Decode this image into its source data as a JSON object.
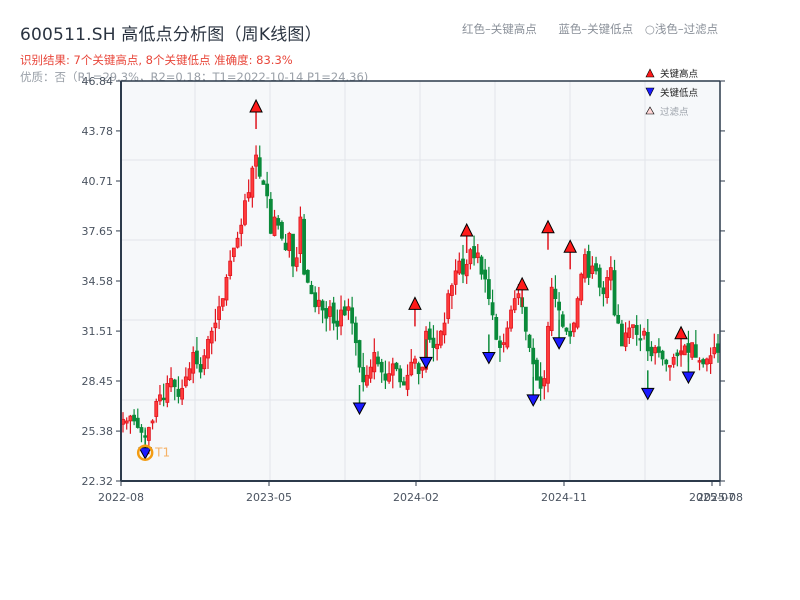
{
  "header": {
    "title": "600511.SH 高低点分析图（周K线图）",
    "result_text": "识别结果: 7个关键高点, 8个关键低点  准确度: 83.3%",
    "quality_text": "优质：否（R1=29.3%，R2=0.18；T1=2022-10-14 P1=24.36)",
    "legend_labels": [
      "红色–关键高点",
      "蓝色–关键低点",
      "○浅色–过滤点"
    ]
  },
  "colors": {
    "up": "#e0141e",
    "down": "#0a8a3a",
    "key_high": "#ff1a1a",
    "key_low": "#1a1aff",
    "filtered": "#ffd6d6",
    "t1_ring": "#f39c12",
    "axis": "#2c3a4b",
    "grid": "#e2e5ea",
    "plot_bg": "#f6f8fa"
  },
  "chart_data": {
    "type": "candlestick",
    "title": "600511.SH 高低点分析图（周K线图）",
    "xlabel": "",
    "ylabel": "",
    "ylim": [
      22.32,
      46.84
    ],
    "yticks": [
      22.32,
      25.38,
      28.45,
      31.51,
      34.58,
      37.65,
      40.71,
      43.78,
      46.84
    ],
    "xticks": [
      {
        "label": "2022-08",
        "pos": 0
      },
      {
        "label": "2023-05",
        "pos": 39
      },
      {
        "label": "2024-02",
        "pos": 78
      },
      {
        "label": "2024-11",
        "pos": 117
      },
      {
        "label": "2025-07",
        "pos": 156
      },
      {
        "label": "2025-08",
        "pos": 158
      }
    ],
    "grid": true,
    "legend": {
      "position": "upper right",
      "entries": [
        "关键高点",
        "关键低点",
        "过滤点"
      ]
    },
    "annotations": [
      {
        "label": "T1",
        "date": "2022-10-14",
        "price": 24.36
      }
    ],
    "close_series": [
      26.1,
      26.0,
      26.3,
      26.0,
      25.6,
      25.3,
      25.0,
      25.6,
      26.0,
      27.2,
      27.6,
      27.3,
      28.3,
      28.6,
      28.1,
      27.5,
      28.0,
      28.7,
      29.2,
      30.2,
      29.5,
      29.0,
      30.0,
      31.0,
      31.5,
      32.0,
      33.0,
      33.5,
      34.8,
      35.8,
      36.6,
      37.2,
      38.0,
      39.5,
      40.0,
      41.5,
      42.3,
      41.0,
      40.5,
      39.8,
      37.5,
      38.5,
      38.0,
      37.2,
      36.5,
      37.5,
      35.5,
      36.0,
      38.5,
      35.0,
      34.5,
      33.8,
      33.0,
      33.4,
      32.8,
      32.3,
      33.0,
      32.0,
      31.8,
      32.8,
      32.5,
      33.0,
      32.0,
      30.8,
      29.3,
      28.4,
      28.8,
      29.3,
      30.2,
      29.5,
      29.0,
      28.5,
      28.9,
      29.5,
      29.2,
      28.4,
      28.2,
      28.8,
      29.6,
      29.8,
      28.9,
      29.3,
      31.5,
      31.0,
      30.5,
      30.7,
      31.5,
      32.0,
      33.8,
      34.3,
      35.2,
      35.8,
      35.0,
      35.6,
      36.5,
      36.0,
      36.3,
      35.0,
      34.7,
      33.5,
      32.5,
      31.0,
      30.5,
      30.8,
      31.7,
      32.8,
      33.5,
      33.8,
      33.0,
      31.5,
      30.5,
      29.5,
      28.5,
      28.0,
      28.6,
      31.8,
      34.2,
      33.5,
      32.8,
      31.8,
      31.5,
      31.2,
      32.0,
      33.5,
      35.0,
      36.2,
      34.8,
      35.5,
      35.2,
      34.2,
      33.8,
      34.8,
      35.4,
      32.5,
      32.0,
      30.6,
      31.4,
      31.7,
      31.9,
      31.3,
      31.0,
      31.5,
      30.3,
      30.0,
      30.5,
      30.2,
      29.8,
      29.5,
      29.4,
      29.9,
      30.0,
      30.3,
      30.6,
      30.2,
      30.8,
      29.9,
      29.7,
      29.5,
      29.8,
      30.0,
      30.5,
      30.2
    ],
    "key_highs": [
      {
        "index": 36,
        "price": 45.0
      },
      {
        "index": 79,
        "price": 32.9
      },
      {
        "index": 93,
        "price": 37.4
      },
      {
        "index": 108,
        "price": 34.1
      },
      {
        "index": 115,
        "price": 37.6
      },
      {
        "index": 121,
        "price": 36.4
      },
      {
        "index": 151,
        "price": 31.1
      }
    ],
    "key_lows": [
      {
        "index": 6,
        "price": 24.36
      },
      {
        "index": 64,
        "price": 27.1
      },
      {
        "index": 82,
        "price": 29.9
      },
      {
        "index": 99,
        "price": 30.2
      },
      {
        "index": 111,
        "price": 27.6
      },
      {
        "index": 118,
        "price": 31.1
      },
      {
        "index": 142,
        "price": 28.0
      },
      {
        "index": 153,
        "price": 29.0
      }
    ]
  }
}
